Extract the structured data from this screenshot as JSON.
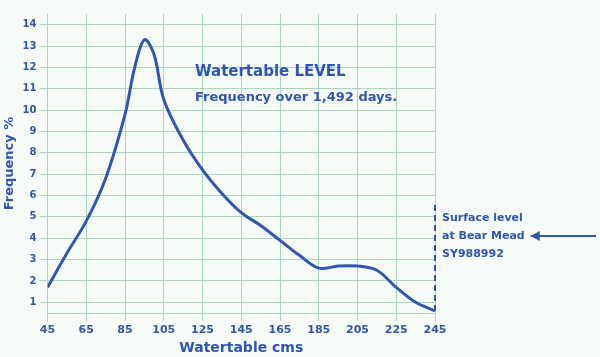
{
  "chart_data": {
    "type": "line",
    "title": "Watertable LEVEL",
    "subtitle": "Frequency over 1,492 days.",
    "xlabel": "Watertable cms",
    "ylabel": "Frequency %",
    "x": [
      45,
      55,
      65,
      75,
      85,
      90,
      95,
      100,
      105,
      115,
      125,
      135,
      145,
      155,
      165,
      175,
      185,
      195,
      205,
      215,
      225,
      235,
      245
    ],
    "values": [
      1.7,
      3.3,
      4.8,
      6.8,
      9.8,
      12.0,
      13.3,
      12.6,
      10.5,
      8.6,
      7.2,
      6.1,
      5.2,
      4.6,
      3.9,
      3.2,
      2.6,
      2.7,
      2.7,
      2.5,
      1.7,
      1.0,
      0.6
    ],
    "color": "#2f55b5",
    "xlim": [
      45,
      245
    ],
    "xticks": [
      45,
      65,
      85,
      105,
      125,
      145,
      165,
      185,
      205,
      225,
      245
    ],
    "ylim": [
      0.5,
      14.5
    ],
    "yticks": [
      1,
      2,
      3,
      4,
      5,
      6,
      7,
      8,
      9,
      10,
      11,
      12,
      13,
      14
    ],
    "grid": true,
    "annotation": {
      "x": 245,
      "text": [
        "Surface level",
        "at Bear Mead",
        "SY988992"
      ]
    }
  }
}
